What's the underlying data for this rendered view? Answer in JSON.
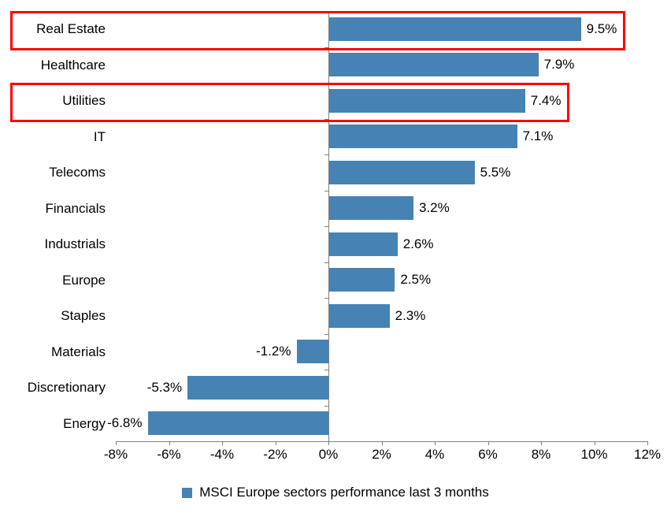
{
  "chart_data": {
    "type": "bar",
    "orientation": "horizontal",
    "title": "",
    "xlabel": "",
    "ylabel": "",
    "categories": [
      "Real Estate",
      "Healthcare",
      "Utilities",
      "IT",
      "Telecoms",
      "Financials",
      "Industrials",
      "Europe",
      "Staples",
      "Materials",
      "Discretionary",
      "Energy"
    ],
    "values": [
      9.5,
      7.9,
      7.4,
      7.1,
      5.5,
      3.2,
      2.6,
      2.5,
      2.3,
      -1.2,
      -5.3,
      -6.8
    ],
    "value_labels": [
      "9.5%",
      "7.9%",
      "7.4%",
      "7.1%",
      "5.5%",
      "3.2%",
      "2.6%",
      "2.5%",
      "2.3%",
      "-1.2%",
      "-5.3%",
      "-6.8%"
    ],
    "xlim": [
      -8,
      12
    ],
    "x_tick_values": [
      -8,
      -6,
      -4,
      -2,
      0,
      2,
      4,
      6,
      8,
      10,
      12
    ],
    "x_tick_labels": [
      "-8%",
      "-6%",
      "-4%",
      "-2%",
      "0%",
      "2%",
      "4%",
      "6%",
      "8%",
      "10%",
      "12%"
    ],
    "grid": "off",
    "legend_position": "bottom-center",
    "legend": "MSCI Europe sectors performance last 3 months",
    "bar_color": "#4682B4",
    "axis_color": "#808080",
    "highlight_color": "#FF0000",
    "highlighted_categories": [
      "Real Estate",
      "Utilities"
    ]
  }
}
